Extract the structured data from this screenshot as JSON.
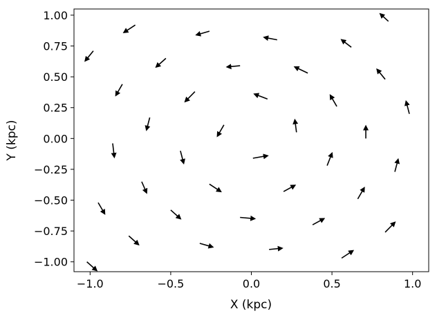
{
  "chart_data": {
    "type": "quiver",
    "xlabel": "X (kpc)",
    "ylabel": "Y (kpc)",
    "xlim": [
      -1.1,
      1.1
    ],
    "ylim": [
      -1.08,
      1.05
    ],
    "xticks": [
      -1.0,
      -0.5,
      0.0,
      0.5,
      1.0
    ],
    "xtick_labels": [
      "−1.0",
      "−0.5",
      "0.0",
      "0.5",
      "1.0"
    ],
    "yticks": [
      1.0,
      0.75,
      0.5,
      0.25,
      0.0,
      -0.25,
      -0.5,
      -0.75,
      -1.0
    ],
    "ytick_labels": [
      "1.00",
      "0.75",
      "0.50",
      "0.25",
      "0.00",
      "−0.25",
      "−0.50",
      "−0.75",
      "−1.00"
    ],
    "grid": false,
    "arrow_color": "#000000",
    "arrows": [
      {
        "x0": 0.85,
        "y0": 0.95,
        "x1": 0.8,
        "y1": 1.01
      },
      {
        "x0": 0.62,
        "y0": 0.74,
        "x1": 0.56,
        "y1": 0.8
      },
      {
        "x0": 0.35,
        "y0": 0.53,
        "x1": 0.27,
        "y1": 0.58
      },
      {
        "x0": 0.16,
        "y0": 0.8,
        "x1": 0.08,
        "y1": 0.82
      },
      {
        "x0": -0.26,
        "y0": 0.87,
        "x1": -0.34,
        "y1": 0.84
      },
      {
        "x0": -0.72,
        "y0": 0.92,
        "x1": -0.79,
        "y1": 0.86
      },
      {
        "x0": -0.98,
        "y0": 0.71,
        "x1": -1.03,
        "y1": 0.63
      },
      {
        "x0": -0.53,
        "y0": 0.65,
        "x1": -0.59,
        "y1": 0.58
      },
      {
        "x0": -0.07,
        "y0": 0.59,
        "x1": -0.15,
        "y1": 0.58
      },
      {
        "x0": 0.1,
        "y0": 0.32,
        "x1": 0.02,
        "y1": 0.36
      },
      {
        "x0": -0.35,
        "y0": 0.38,
        "x1": -0.41,
        "y1": 0.3
      },
      {
        "x0": -0.8,
        "y0": 0.44,
        "x1": -0.84,
        "y1": 0.35
      },
      {
        "x0": -0.63,
        "y0": 0.17,
        "x1": -0.65,
        "y1": 0.07
      },
      {
        "x0": -0.17,
        "y0": 0.11,
        "x1": -0.21,
        "y1": 0.02
      },
      {
        "x0": 0.28,
        "y0": 0.05,
        "x1": 0.27,
        "y1": 0.15
      },
      {
        "x0": 0.53,
        "y0": 0.26,
        "x1": 0.49,
        "y1": 0.35
      },
      {
        "x0": 0.83,
        "y0": 0.48,
        "x1": 0.78,
        "y1": 0.56
      },
      {
        "x0": 0.98,
        "y0": 0.2,
        "x1": 0.96,
        "y1": 0.3
      },
      {
        "x0": 0.71,
        "y0": 0.0,
        "x1": 0.71,
        "y1": 0.1
      },
      {
        "x0": 0.47,
        "y0": -0.22,
        "x1": 0.5,
        "y1": -0.12
      },
      {
        "x0": 0.89,
        "y0": -0.27,
        "x1": 0.91,
        "y1": -0.17
      },
      {
        "x0": -0.86,
        "y0": -0.04,
        "x1": -0.85,
        "y1": -0.15
      },
      {
        "x0": -0.44,
        "y0": -0.1,
        "x1": -0.42,
        "y1": -0.2
      },
      {
        "x0": 0.01,
        "y0": -0.16,
        "x1": 0.1,
        "y1": -0.14
      },
      {
        "x0": -0.68,
        "y0": -0.35,
        "x1": -0.65,
        "y1": -0.44
      },
      {
        "x0": -0.26,
        "y0": -0.37,
        "x1": -0.19,
        "y1": -0.43
      },
      {
        "x0": 0.2,
        "y0": -0.43,
        "x1": 0.27,
        "y1": -0.38
      },
      {
        "x0": 0.66,
        "y0": -0.49,
        "x1": 0.7,
        "y1": -0.4
      },
      {
        "x0": -0.95,
        "y0": -0.52,
        "x1": -0.91,
        "y1": -0.61
      },
      {
        "x0": -0.5,
        "y0": -0.58,
        "x1": -0.44,
        "y1": -0.65
      },
      {
        "x0": -0.07,
        "y0": -0.64,
        "x1": 0.02,
        "y1": -0.65
      },
      {
        "x0": 0.38,
        "y0": -0.7,
        "x1": 0.45,
        "y1": -0.65
      },
      {
        "x0": 0.83,
        "y0": -0.76,
        "x1": 0.89,
        "y1": -0.68
      },
      {
        "x0": -0.76,
        "y0": -0.79,
        "x1": -0.7,
        "y1": -0.86
      },
      {
        "x0": -0.32,
        "y0": -0.85,
        "x1": -0.24,
        "y1": -0.88
      },
      {
        "x0": 0.11,
        "y0": -0.9,
        "x1": 0.19,
        "y1": -0.89
      },
      {
        "x0": 0.56,
        "y0": -0.97,
        "x1": 0.63,
        "y1": -0.91
      },
      {
        "x0": -1.02,
        "y0": -1.0,
        "x1": -0.96,
        "y1": -1.07
      }
    ]
  }
}
